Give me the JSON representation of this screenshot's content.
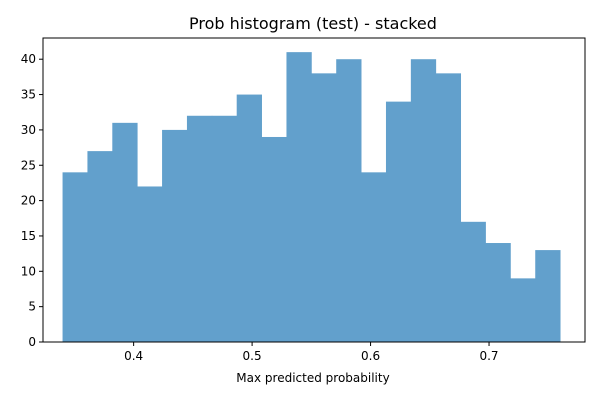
{
  "chart_data": {
    "type": "bar",
    "title": "Prob histogram (test) - stacked",
    "xlabel": "Max predicted probability",
    "ylabel": "",
    "xlim": [
      0.3235,
      0.781
    ],
    "ylim": [
      0,
      43
    ],
    "bar_color": "#62a0cc",
    "bins": [
      {
        "x0": 0.34,
        "x1": 0.361,
        "value": 24
      },
      {
        "x0": 0.361,
        "x1": 0.382,
        "value": 27
      },
      {
        "x0": 0.382,
        "x1": 0.403,
        "value": 31
      },
      {
        "x0": 0.403,
        "x1": 0.424,
        "value": 22
      },
      {
        "x0": 0.424,
        "x1": 0.445,
        "value": 30
      },
      {
        "x0": 0.445,
        "x1": 0.466,
        "value": 32
      },
      {
        "x0": 0.466,
        "x1": 0.487,
        "value": 32
      },
      {
        "x0": 0.487,
        "x1": 0.508,
        "value": 35
      },
      {
        "x0": 0.508,
        "x1": 0.529,
        "value": 29
      },
      {
        "x0": 0.529,
        "x1": 0.55,
        "value": 41
      },
      {
        "x0": 0.55,
        "x1": 0.571,
        "value": 38
      },
      {
        "x0": 0.571,
        "x1": 0.592,
        "value": 40
      },
      {
        "x0": 0.592,
        "x1": 0.613,
        "value": 24
      },
      {
        "x0": 0.613,
        "x1": 0.634,
        "value": 34
      },
      {
        "x0": 0.634,
        "x1": 0.655,
        "value": 40
      },
      {
        "x0": 0.655,
        "x1": 0.676,
        "value": 38
      },
      {
        "x0": 0.676,
        "x1": 0.697,
        "value": 17
      },
      {
        "x0": 0.697,
        "x1": 0.718,
        "value": 14
      },
      {
        "x0": 0.718,
        "x1": 0.739,
        "value": 9
      },
      {
        "x0": 0.739,
        "x1": 0.76,
        "value": 13
      }
    ],
    "x_ticks": [
      {
        "value": 0.4,
        "label": "0.4"
      },
      {
        "value": 0.5,
        "label": "0.5"
      },
      {
        "value": 0.6,
        "label": "0.6"
      },
      {
        "value": 0.7,
        "label": "0.7"
      }
    ],
    "y_ticks": [
      {
        "value": 0,
        "label": "0"
      },
      {
        "value": 5,
        "label": "5"
      },
      {
        "value": 10,
        "label": "10"
      },
      {
        "value": 15,
        "label": "15"
      },
      {
        "value": 20,
        "label": "20"
      },
      {
        "value": 25,
        "label": "25"
      },
      {
        "value": 30,
        "label": "30"
      },
      {
        "value": 35,
        "label": "35"
      },
      {
        "value": 40,
        "label": "40"
      }
    ],
    "grid": false,
    "legend": "none"
  }
}
